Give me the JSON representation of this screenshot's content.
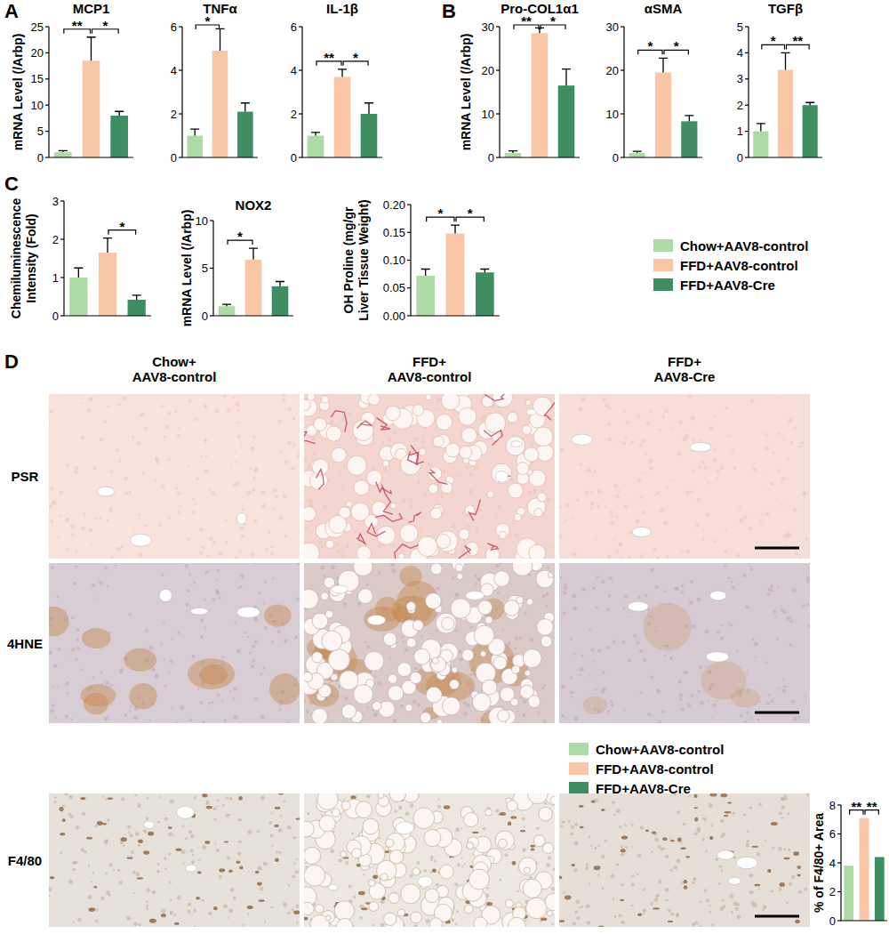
{
  "chart_data": [
    {
      "type": "bar",
      "panel": "A",
      "title": "MCP1",
      "y_label": "mRNA Level (/Arbp)",
      "categories": [
        "Chow+AAV8-control",
        "FFD+AAV8-control",
        "FFD+AAV8-Cre"
      ],
      "values": [
        1,
        18.5,
        8
      ],
      "errors": [
        0.3,
        4.5,
        0.8
      ],
      "colors": [
        "#addba5",
        "#f9c6a6",
        "#3d8f62"
      ],
      "ylim": [
        0,
        25
      ],
      "yticks": [
        0,
        5,
        10,
        15,
        20,
        25
      ],
      "tick_labels": "y",
      "significance": [
        {
          "from": 0,
          "to": 1,
          "label": "**"
        },
        {
          "from": 1,
          "to": 2,
          "label": "*"
        }
      ]
    },
    {
      "type": "bar",
      "title": "TNFα",
      "categories": [
        "Chow+AAV8-control",
        "FFD+AAV8-control",
        "FFD+AAV8-Cre"
      ],
      "values": [
        1,
        4.9,
        2.1
      ],
      "errors": [
        0.3,
        1.0,
        0.4
      ],
      "colors": [
        "#addba5",
        "#f9c6a6",
        "#3d8f62"
      ],
      "ylim": [
        0,
        6
      ],
      "yticks": [
        0,
        2,
        4,
        6
      ],
      "tick_labels": "y",
      "significance": [
        {
          "from": 0,
          "to": 1,
          "label": "*"
        }
      ]
    },
    {
      "type": "bar",
      "title": "IL-1β",
      "categories": [
        "Chow+AAV8-control",
        "FFD+AAV8-control",
        "FFD+AAV8-Cre"
      ],
      "values": [
        1,
        3.7,
        2.0
      ],
      "errors": [
        0.15,
        0.35,
        0.5
      ],
      "colors": [
        "#addba5",
        "#f9c6a6",
        "#3d8f62"
      ],
      "ylim": [
        0,
        6
      ],
      "yticks": [
        0,
        2,
        4,
        6
      ],
      "tick_labels": "y",
      "significance": [
        {
          "from": 0,
          "to": 1,
          "label": "**"
        },
        {
          "from": 1,
          "to": 2,
          "label": "*"
        }
      ]
    },
    {
      "type": "bar",
      "panel": "B",
      "title": "Pro-COL1α1",
      "y_label": "mRNA Level (/Arbp)",
      "categories": [
        "Chow+AAV8-control",
        "FFD+AAV8-control",
        "FFD+AAV8-Cre"
      ],
      "values": [
        1,
        28.5,
        16.5
      ],
      "errors": [
        0.5,
        1.2,
        3.8
      ],
      "colors": [
        "#addba5",
        "#f9c6a6",
        "#3d8f62"
      ],
      "ylim": [
        0,
        30
      ],
      "yticks": [
        0,
        10,
        20,
        30
      ],
      "tick_labels": "y",
      "significance": [
        {
          "from": 0,
          "to": 1,
          "label": "**"
        },
        {
          "from": 1,
          "to": 2,
          "label": "*"
        }
      ]
    },
    {
      "type": "bar",
      "title": "αSMA",
      "categories": [
        "Chow+AAV8-control",
        "FFD+AAV8-control",
        "FFD+AAV8-Cre"
      ],
      "values": [
        1,
        19.5,
        8.3
      ],
      "errors": [
        0.4,
        3.3,
        1.3
      ],
      "colors": [
        "#addba5",
        "#f9c6a6",
        "#3d8f62"
      ],
      "ylim": [
        0,
        30
      ],
      "yticks": [
        0,
        10,
        20,
        30
      ],
      "tick_labels": "y",
      "significance": [
        {
          "from": 0,
          "to": 1,
          "label": "*"
        },
        {
          "from": 1,
          "to": 2,
          "label": "*"
        }
      ]
    },
    {
      "type": "bar",
      "title": "TGFβ",
      "categories": [
        "Chow+AAV8-control",
        "FFD+AAV8-control",
        "FFD+AAV8-Cre"
      ],
      "values": [
        1,
        3.35,
        2.0
      ],
      "errors": [
        0.3,
        0.65,
        0.1
      ],
      "colors": [
        "#addba5",
        "#f9c6a6",
        "#3d8f62"
      ],
      "ylim": [
        0,
        5
      ],
      "yticks": [
        0,
        1,
        2,
        3,
        4,
        5
      ],
      "tick_labels": "y",
      "significance": [
        {
          "from": 0,
          "to": 1,
          "label": "*"
        },
        {
          "from": 1,
          "to": 2,
          "label": "**"
        }
      ]
    },
    {
      "type": "bar",
      "panel": "C",
      "y_label": [
        "Chemiluminescence",
        "Intensity (Fold)"
      ],
      "categories": [
        "Chow+AAV8-control",
        "FFD+AAV8-control",
        "FFD+AAV8-Cre"
      ],
      "values": [
        1,
        1.65,
        0.42
      ],
      "errors": [
        0.25,
        0.38,
        0.12
      ],
      "colors": [
        "#addba5",
        "#f9c6a6",
        "#3d8f62"
      ],
      "ylim": [
        0,
        3
      ],
      "yticks": [
        0,
        1,
        2,
        3
      ],
      "tick_labels": "y",
      "significance": [
        {
          "from": 1,
          "to": 2,
          "label": "*"
        }
      ]
    },
    {
      "type": "bar",
      "title": "NOX2",
      "y_label": "mRNA Level (/Arbp)",
      "categories": [
        "Chow+AAV8-control",
        "FFD+AAV8-control",
        "FFD+AAV8-Cre"
      ],
      "values": [
        1,
        5.9,
        3.1
      ],
      "errors": [
        0.2,
        1.2,
        0.5
      ],
      "colors": [
        "#addba5",
        "#f9c6a6",
        "#3d8f62"
      ],
      "ylim": [
        0,
        10
      ],
      "yticks": [
        0,
        5,
        10
      ],
      "tick_labels": "y",
      "significance": [
        {
          "from": 0,
          "to": 1,
          "label": "*"
        }
      ]
    },
    {
      "type": "bar",
      "y_label": [
        "OH Proline (mg/gr",
        "Liver Tissue Weight)"
      ],
      "categories": [
        "Chow+AAV8-control",
        "FFD+AAV8-control",
        "FFD+AAV8-Cre"
      ],
      "values": [
        0.072,
        0.148,
        0.078
      ],
      "errors": [
        0.012,
        0.015,
        0.006
      ],
      "colors": [
        "#addba5",
        "#f9c6a6",
        "#3d8f62"
      ],
      "ylim": [
        0,
        0.2
      ],
      "yticks": [
        {
          "value": 0,
          "label": "0.00"
        },
        {
          "value": 0.05,
          "label": "0.05"
        },
        {
          "value": 0.1,
          "label": "0.10"
        },
        {
          "value": 0.15,
          "label": "0.15"
        },
        {
          "value": 0.2,
          "label": "0.20"
        }
      ],
      "tick_labels": "y",
      "significance": [
        {
          "from": 0,
          "to": 1,
          "label": "*"
        },
        {
          "from": 1,
          "to": 2,
          "label": "*"
        }
      ]
    },
    {
      "type": "bar",
      "y_label": "% of F4/80+ Area",
      "categories": [
        "Chow+AAV8-control",
        "FFD+AAV8-control",
        "FFD+AAV8-Cre"
      ],
      "values": [
        3.8,
        7.1,
        4.4
      ],
      "colors": [
        "#addba5",
        "#f9c6a6",
        "#3d8f62"
      ],
      "ylim": [
        0,
        8
      ],
      "yticks": [
        0,
        2,
        4,
        6,
        8
      ],
      "tick_labels": "y",
      "significance": [
        {
          "from": 0,
          "to": 1,
          "label": "**"
        },
        {
          "from": 1,
          "to": 2,
          "label": "**"
        }
      ]
    }
  ],
  "image_panel": {
    "panel": "D",
    "columns": [
      [
        "Chow+",
        "AAV8-control"
      ],
      [
        "FFD+",
        "AAV8-control"
      ],
      [
        "FFD+",
        "AAV8-Cre"
      ]
    ],
    "rows": [
      "PSR",
      "4HNE",
      "F4/80"
    ]
  }
}
